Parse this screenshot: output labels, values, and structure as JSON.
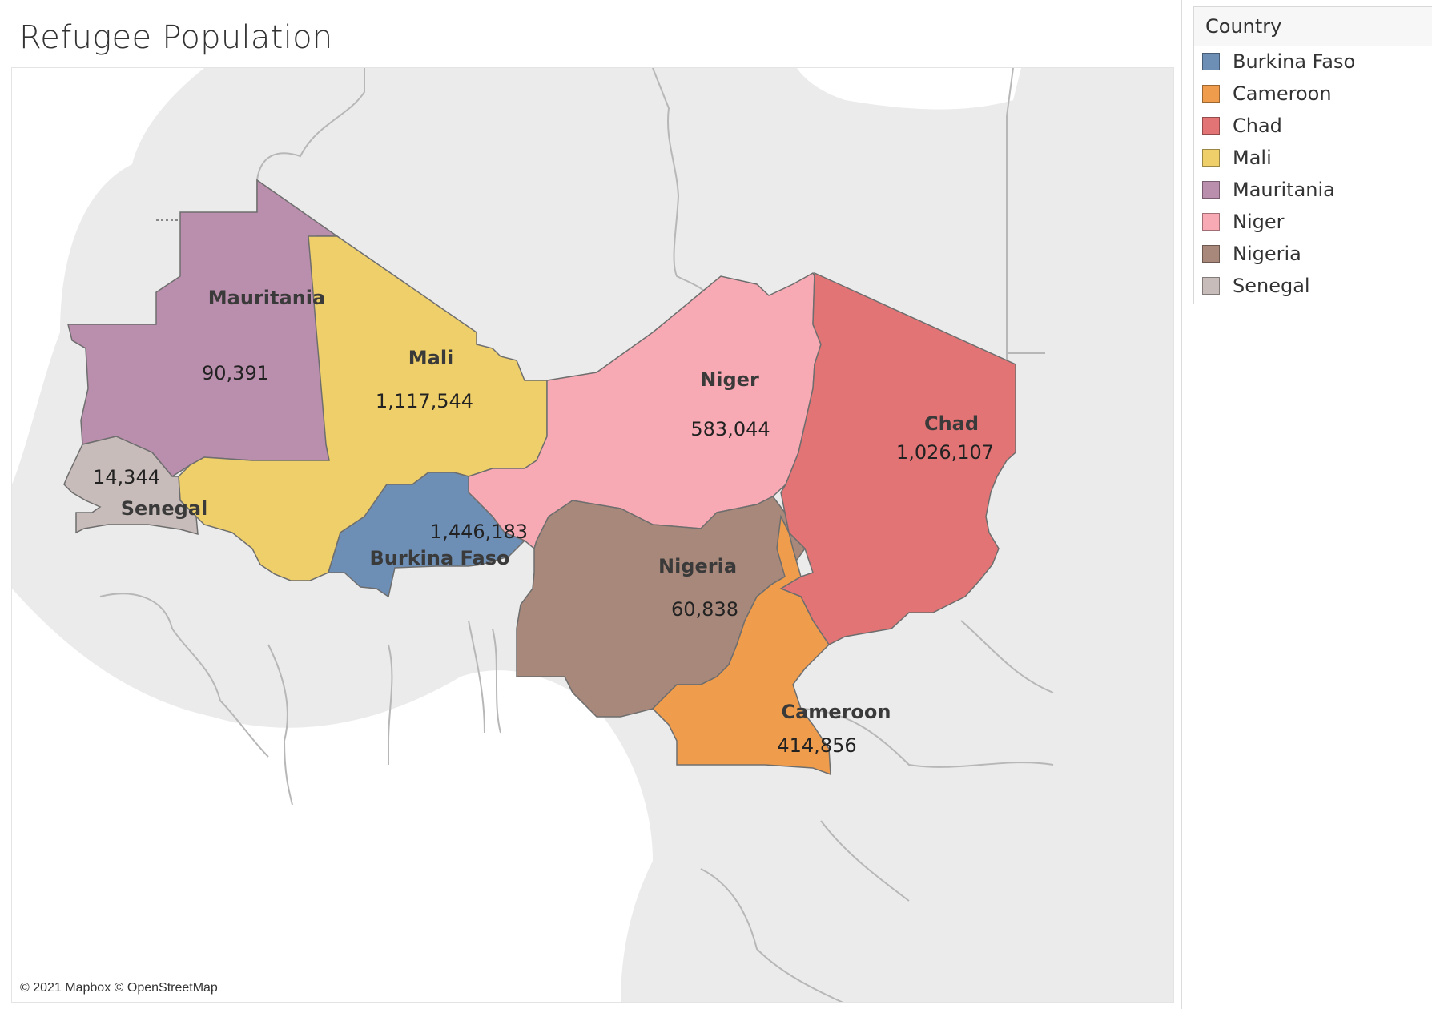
{
  "title": "Refugee Population",
  "attribution": "© 2021 Mapbox © OpenStreetMap",
  "colors": {
    "land": "#ebebeb",
    "sea": "#ffffff",
    "border": "#b7b7b7",
    "country_stroke": "#6e6e6e"
  },
  "legend": {
    "title": "Country",
    "items": [
      {
        "label": "Burkina Faso",
        "color": "#6e8fb5"
      },
      {
        "label": "Cameroon",
        "color": "#ef9d4d"
      },
      {
        "label": "Chad",
        "color": "#e27475"
      },
      {
        "label": "Mali",
        "color": "#eecf6a"
      },
      {
        "label": "Mauritania",
        "color": "#ba8ead"
      },
      {
        "label": "Niger",
        "color": "#f8aab4"
      },
      {
        "label": "Nigeria",
        "color": "#a7887a"
      },
      {
        "label": "Senegal",
        "color": "#c8bcba"
      }
    ]
  },
  "regions": {
    "mauritania": {
      "name": "Mauritania",
      "value": "90,391",
      "color": "#ba8ead"
    },
    "mali": {
      "name": "Mali",
      "value": "1,117,544",
      "color": "#eecf6a"
    },
    "niger": {
      "name": "Niger",
      "value": "583,044",
      "color": "#f8aab4"
    },
    "chad": {
      "name": "Chad",
      "value": "1,026,107",
      "color": "#e27475"
    },
    "senegal": {
      "name": "Senegal",
      "value": "14,344",
      "color": "#c8bcba"
    },
    "burkina_faso": {
      "name": "Burkina Faso",
      "value": "1,446,183",
      "color": "#6e8fb5"
    },
    "nigeria": {
      "name": "Nigeria",
      "value": "60,838",
      "color": "#a7887a"
    },
    "cameroon": {
      "name": "Cameroon",
      "value": "414,856",
      "color": "#ef9d4d"
    }
  }
}
